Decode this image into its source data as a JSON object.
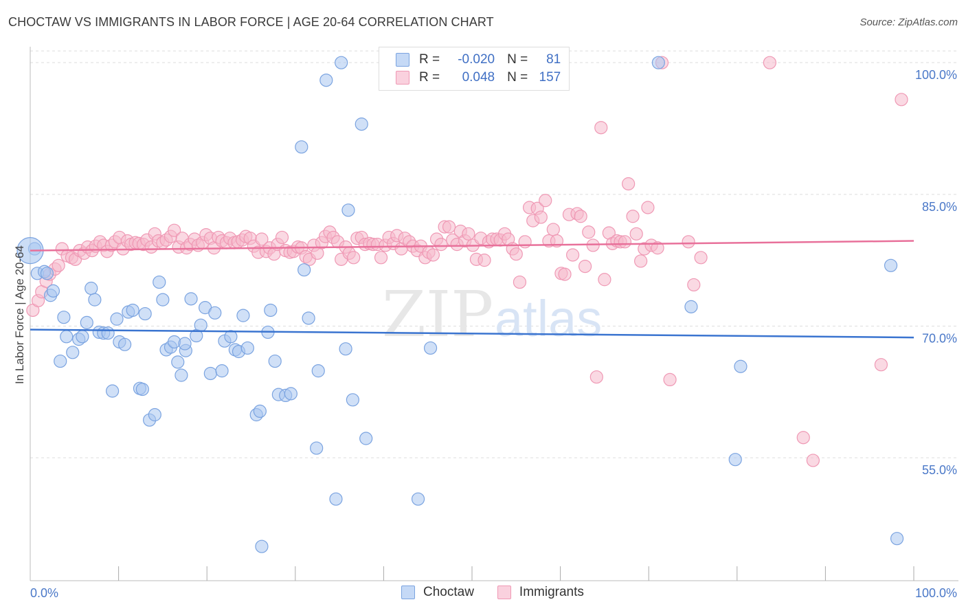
{
  "header": {
    "title": "CHOCTAW VS IMMIGRANTS IN LABOR FORCE | AGE 20-64 CORRELATION CHART",
    "source": "Source: ZipAtlas.com"
  },
  "legend": {
    "series": [
      {
        "r_label": "R =",
        "r_value": "-0.020",
        "n_label": "N =",
        "n_value": "81"
      },
      {
        "r_label": "R =",
        "r_value": "0.048",
        "n_label": "N =",
        "n_value": "157"
      }
    ]
  },
  "watermark": {
    "zip": "ZIP",
    "atlas": "atlas"
  },
  "colors": {
    "choctaw_fill": "#a9c6f0",
    "choctaw_stroke": "#7aa3e0",
    "choctaw_line": "#3a74d0",
    "immigrants_fill": "#f6b9cc",
    "immigrants_stroke": "#ef98b4",
    "immigrants_line": "#e8709a",
    "grid": "#dddddd",
    "tick_text": "#4a78c8"
  },
  "chart_data": {
    "type": "scatter",
    "title": "CHOCTAW VS IMMIGRANTS IN LABOR FORCE | AGE 20-64 CORRELATION CHART",
    "ylabel": "In Labor Force | Age 20-64",
    "xlim": [
      0,
      100
    ],
    "ylim": [
      41.0,
      101.5
    ],
    "x_ticks": [
      {
        "value": 0,
        "label": "0.0%"
      },
      {
        "value": 100,
        "label": "100.0%"
      }
    ],
    "y_ticks": [
      {
        "value": 100,
        "label": "100.0%"
      },
      {
        "value": 85,
        "label": "85.0%"
      },
      {
        "value": 70,
        "label": "70.0%"
      },
      {
        "value": 55,
        "label": "55.0%"
      }
    ],
    "series": [
      {
        "name": "Choctaw",
        "trend": {
          "x0": 0,
          "y0": 69.6,
          "x1": 100,
          "y1": 68.7
        },
        "points": [
          [
            0.5,
            78.8
          ],
          [
            0.8,
            76.0
          ],
          [
            1.6,
            76.2
          ],
          [
            1.9,
            76.0
          ],
          [
            2.3,
            73.5
          ],
          [
            2.6,
            74.0
          ],
          [
            3.4,
            66.0
          ],
          [
            3.8,
            71.0
          ],
          [
            4.1,
            68.8
          ],
          [
            4.8,
            67.0
          ],
          [
            5.5,
            68.5
          ],
          [
            5.9,
            68.8
          ],
          [
            6.4,
            70.4
          ],
          [
            6.9,
            74.3
          ],
          [
            7.3,
            73.0
          ],
          [
            7.8,
            69.3
          ],
          [
            8.3,
            69.2
          ],
          [
            8.8,
            69.2
          ],
          [
            9.3,
            62.6
          ],
          [
            9.8,
            70.8
          ],
          [
            10.1,
            68.2
          ],
          [
            10.7,
            67.9
          ],
          [
            11.1,
            71.6
          ],
          [
            11.6,
            71.8
          ],
          [
            12.4,
            62.9
          ],
          [
            12.7,
            62.8
          ],
          [
            13.0,
            71.4
          ],
          [
            13.5,
            59.3
          ],
          [
            14.1,
            59.9
          ],
          [
            14.6,
            75.0
          ],
          [
            15.0,
            73.0
          ],
          [
            15.4,
            67.3
          ],
          [
            15.9,
            67.6
          ],
          [
            16.3,
            68.2
          ],
          [
            16.7,
            65.9
          ],
          [
            17.1,
            64.4
          ],
          [
            17.6,
            67.2
          ],
          [
            18.2,
            73.1
          ],
          [
            18.8,
            68.9
          ],
          [
            19.3,
            70.1
          ],
          [
            19.8,
            72.1
          ],
          [
            20.4,
            64.6
          ],
          [
            20.9,
            71.5
          ],
          [
            21.7,
            64.9
          ],
          [
            22.0,
            68.3
          ],
          [
            22.7,
            68.8
          ],
          [
            23.2,
            67.3
          ],
          [
            23.6,
            67.1
          ],
          [
            24.1,
            71.2
          ],
          [
            24.6,
            67.5
          ],
          [
            25.6,
            59.9
          ],
          [
            26.0,
            60.3
          ],
          [
            26.9,
            69.3
          ],
          [
            27.2,
            71.8
          ],
          [
            27.7,
            66.0
          ],
          [
            28.1,
            62.2
          ],
          [
            28.9,
            62.1
          ],
          [
            29.5,
            62.3
          ],
          [
            30.7,
            90.4
          ],
          [
            31.0,
            76.4
          ],
          [
            31.5,
            70.9
          ],
          [
            32.4,
            56.1
          ],
          [
            32.6,
            64.9
          ],
          [
            33.5,
            98.0
          ],
          [
            34.6,
            50.3
          ],
          [
            35.2,
            100.0
          ],
          [
            35.7,
            67.4
          ],
          [
            36.0,
            83.2
          ],
          [
            36.5,
            61.6
          ],
          [
            37.5,
            93.0
          ],
          [
            38.0,
            57.2
          ],
          [
            43.9,
            50.3
          ],
          [
            45.3,
            67.5
          ],
          [
            26.2,
            44.9
          ],
          [
            71.1,
            100.0
          ],
          [
            74.8,
            72.2
          ],
          [
            79.8,
            54.8
          ],
          [
            80.4,
            65.4
          ],
          [
            97.4,
            76.9
          ],
          [
            98.1,
            45.8
          ],
          [
            17.5,
            68.0
          ]
        ]
      },
      {
        "name": "Immigrants",
        "trend": {
          "x0": 0,
          "y0": 78.6,
          "x1": 100,
          "y1": 79.7
        },
        "points": [
          [
            0.3,
            71.8
          ],
          [
            0.9,
            72.9
          ],
          [
            1.3,
            73.9
          ],
          [
            1.8,
            75.1
          ],
          [
            2.2,
            75.9
          ],
          [
            2.8,
            76.5
          ],
          [
            3.2,
            76.9
          ],
          [
            3.6,
            78.8
          ],
          [
            4.2,
            78.0
          ],
          [
            4.7,
            77.8
          ],
          [
            5.1,
            77.6
          ],
          [
            5.6,
            78.6
          ],
          [
            6.1,
            78.3
          ],
          [
            6.5,
            79.0
          ],
          [
            7.0,
            78.6
          ],
          [
            7.4,
            79.1
          ],
          [
            7.9,
            79.6
          ],
          [
            8.3,
            79.2
          ],
          [
            8.7,
            78.5
          ],
          [
            9.2,
            79.2
          ],
          [
            9.6,
            79.6
          ],
          [
            10.1,
            80.1
          ],
          [
            10.5,
            78.8
          ],
          [
            11.0,
            79.7
          ],
          [
            11.4,
            79.3
          ],
          [
            11.9,
            79.5
          ],
          [
            12.3,
            79.4
          ],
          [
            12.8,
            79.3
          ],
          [
            13.2,
            79.8
          ],
          [
            13.7,
            79.0
          ],
          [
            14.1,
            80.5
          ],
          [
            14.5,
            79.7
          ],
          [
            15.0,
            79.5
          ],
          [
            15.4,
            79.8
          ],
          [
            15.9,
            80.2
          ],
          [
            16.3,
            80.9
          ],
          [
            16.8,
            79.0
          ],
          [
            17.2,
            80.0
          ],
          [
            17.7,
            78.9
          ],
          [
            18.1,
            79.3
          ],
          [
            18.6,
            79.9
          ],
          [
            19.0,
            79.2
          ],
          [
            19.5,
            79.5
          ],
          [
            19.9,
            80.4
          ],
          [
            20.4,
            80.0
          ],
          [
            20.8,
            78.9
          ],
          [
            21.3,
            80.1
          ],
          [
            21.7,
            79.7
          ],
          [
            22.2,
            79.5
          ],
          [
            22.6,
            80.0
          ],
          [
            23.1,
            79.5
          ],
          [
            23.5,
            79.6
          ],
          [
            24.0,
            79.8
          ],
          [
            24.4,
            80.2
          ],
          [
            24.9,
            80.0
          ],
          [
            25.3,
            79.1
          ],
          [
            25.8,
            78.4
          ],
          [
            26.2,
            79.9
          ],
          [
            26.7,
            78.5
          ],
          [
            27.1,
            78.9
          ],
          [
            27.6,
            78.2
          ],
          [
            28.0,
            79.3
          ],
          [
            28.5,
            80.1
          ],
          [
            28.9,
            78.6
          ],
          [
            29.4,
            78.4
          ],
          [
            29.8,
            78.5
          ],
          [
            30.3,
            79.0
          ],
          [
            30.7,
            78.9
          ],
          [
            31.2,
            77.9
          ],
          [
            31.6,
            77.6
          ],
          [
            32.1,
            79.2
          ],
          [
            32.5,
            78.3
          ],
          [
            33.0,
            79.5
          ],
          [
            33.4,
            80.2
          ],
          [
            33.9,
            80.7
          ],
          [
            34.3,
            80.1
          ],
          [
            34.8,
            79.6
          ],
          [
            35.2,
            77.6
          ],
          [
            35.7,
            79.0
          ],
          [
            36.1,
            78.3
          ],
          [
            36.6,
            77.8
          ],
          [
            37.0,
            80.0
          ],
          [
            37.5,
            80.1
          ],
          [
            37.9,
            79.3
          ],
          [
            38.4,
            79.4
          ],
          [
            38.8,
            79.3
          ],
          [
            39.3,
            79.3
          ],
          [
            39.7,
            77.8
          ],
          [
            40.2,
            79.2
          ],
          [
            40.6,
            80.1
          ],
          [
            41.1,
            79.4
          ],
          [
            41.5,
            80.3
          ],
          [
            42.0,
            78.8
          ],
          [
            42.4,
            80.0
          ],
          [
            42.9,
            79.6
          ],
          [
            43.3,
            79.1
          ],
          [
            43.8,
            78.6
          ],
          [
            44.2,
            79.1
          ],
          [
            44.7,
            77.8
          ],
          [
            45.1,
            78.4
          ],
          [
            45.6,
            78.1
          ],
          [
            46.0,
            79.9
          ],
          [
            46.5,
            79.3
          ],
          [
            46.9,
            81.3
          ],
          [
            47.4,
            81.3
          ],
          [
            47.8,
            79.8
          ],
          [
            48.3,
            79.3
          ],
          [
            48.7,
            80.8
          ],
          [
            49.2,
            79.7
          ],
          [
            49.6,
            80.5
          ],
          [
            50.1,
            79.2
          ],
          [
            50.5,
            77.6
          ],
          [
            51.0,
            80.0
          ],
          [
            51.4,
            77.5
          ],
          [
            51.9,
            79.6
          ],
          [
            52.3,
            79.9
          ],
          [
            52.8,
            79.9
          ],
          [
            53.2,
            79.8
          ],
          [
            53.7,
            80.5
          ],
          [
            54.1,
            79.9
          ],
          [
            54.6,
            78.8
          ],
          [
            55.0,
            78.2
          ],
          [
            55.4,
            75.0
          ],
          [
            56.0,
            79.6
          ],
          [
            56.5,
            83.5
          ],
          [
            56.9,
            82.0
          ],
          [
            57.4,
            83.4
          ],
          [
            57.8,
            82.4
          ],
          [
            58.3,
            84.3
          ],
          [
            58.7,
            79.7
          ],
          [
            59.2,
            81.0
          ],
          [
            59.6,
            79.7
          ],
          [
            60.1,
            76.0
          ],
          [
            60.5,
            75.9
          ],
          [
            61.0,
            82.7
          ],
          [
            61.4,
            78.1
          ],
          [
            61.9,
            82.8
          ],
          [
            62.3,
            82.5
          ],
          [
            62.8,
            76.8
          ],
          [
            63.2,
            80.7
          ],
          [
            63.7,
            79.2
          ],
          [
            64.1,
            64.2
          ],
          [
            64.6,
            92.6
          ],
          [
            65.0,
            75.3
          ],
          [
            65.5,
            80.6
          ],
          [
            65.9,
            79.4
          ],
          [
            66.4,
            79.7
          ],
          [
            66.8,
            79.6
          ],
          [
            67.3,
            79.6
          ],
          [
            67.7,
            86.2
          ],
          [
            68.2,
            82.5
          ],
          [
            68.6,
            80.5
          ],
          [
            69.1,
            77.4
          ],
          [
            69.5,
            78.8
          ],
          [
            69.9,
            83.5
          ],
          [
            70.3,
            79.2
          ],
          [
            71.0,
            78.9
          ],
          [
            71.5,
            100.0
          ],
          [
            72.4,
            63.9
          ],
          [
            75.1,
            74.7
          ],
          [
            75.9,
            77.8
          ],
          [
            83.7,
            100.0
          ],
          [
            87.5,
            57.3
          ],
          [
            88.6,
            54.7
          ],
          [
            96.3,
            65.6
          ],
          [
            98.6,
            95.8
          ],
          [
            74.5,
            79.6
          ]
        ]
      }
    ]
  },
  "bottom_legend": [
    {
      "label": "Choctaw"
    },
    {
      "label": "Immigrants"
    }
  ]
}
